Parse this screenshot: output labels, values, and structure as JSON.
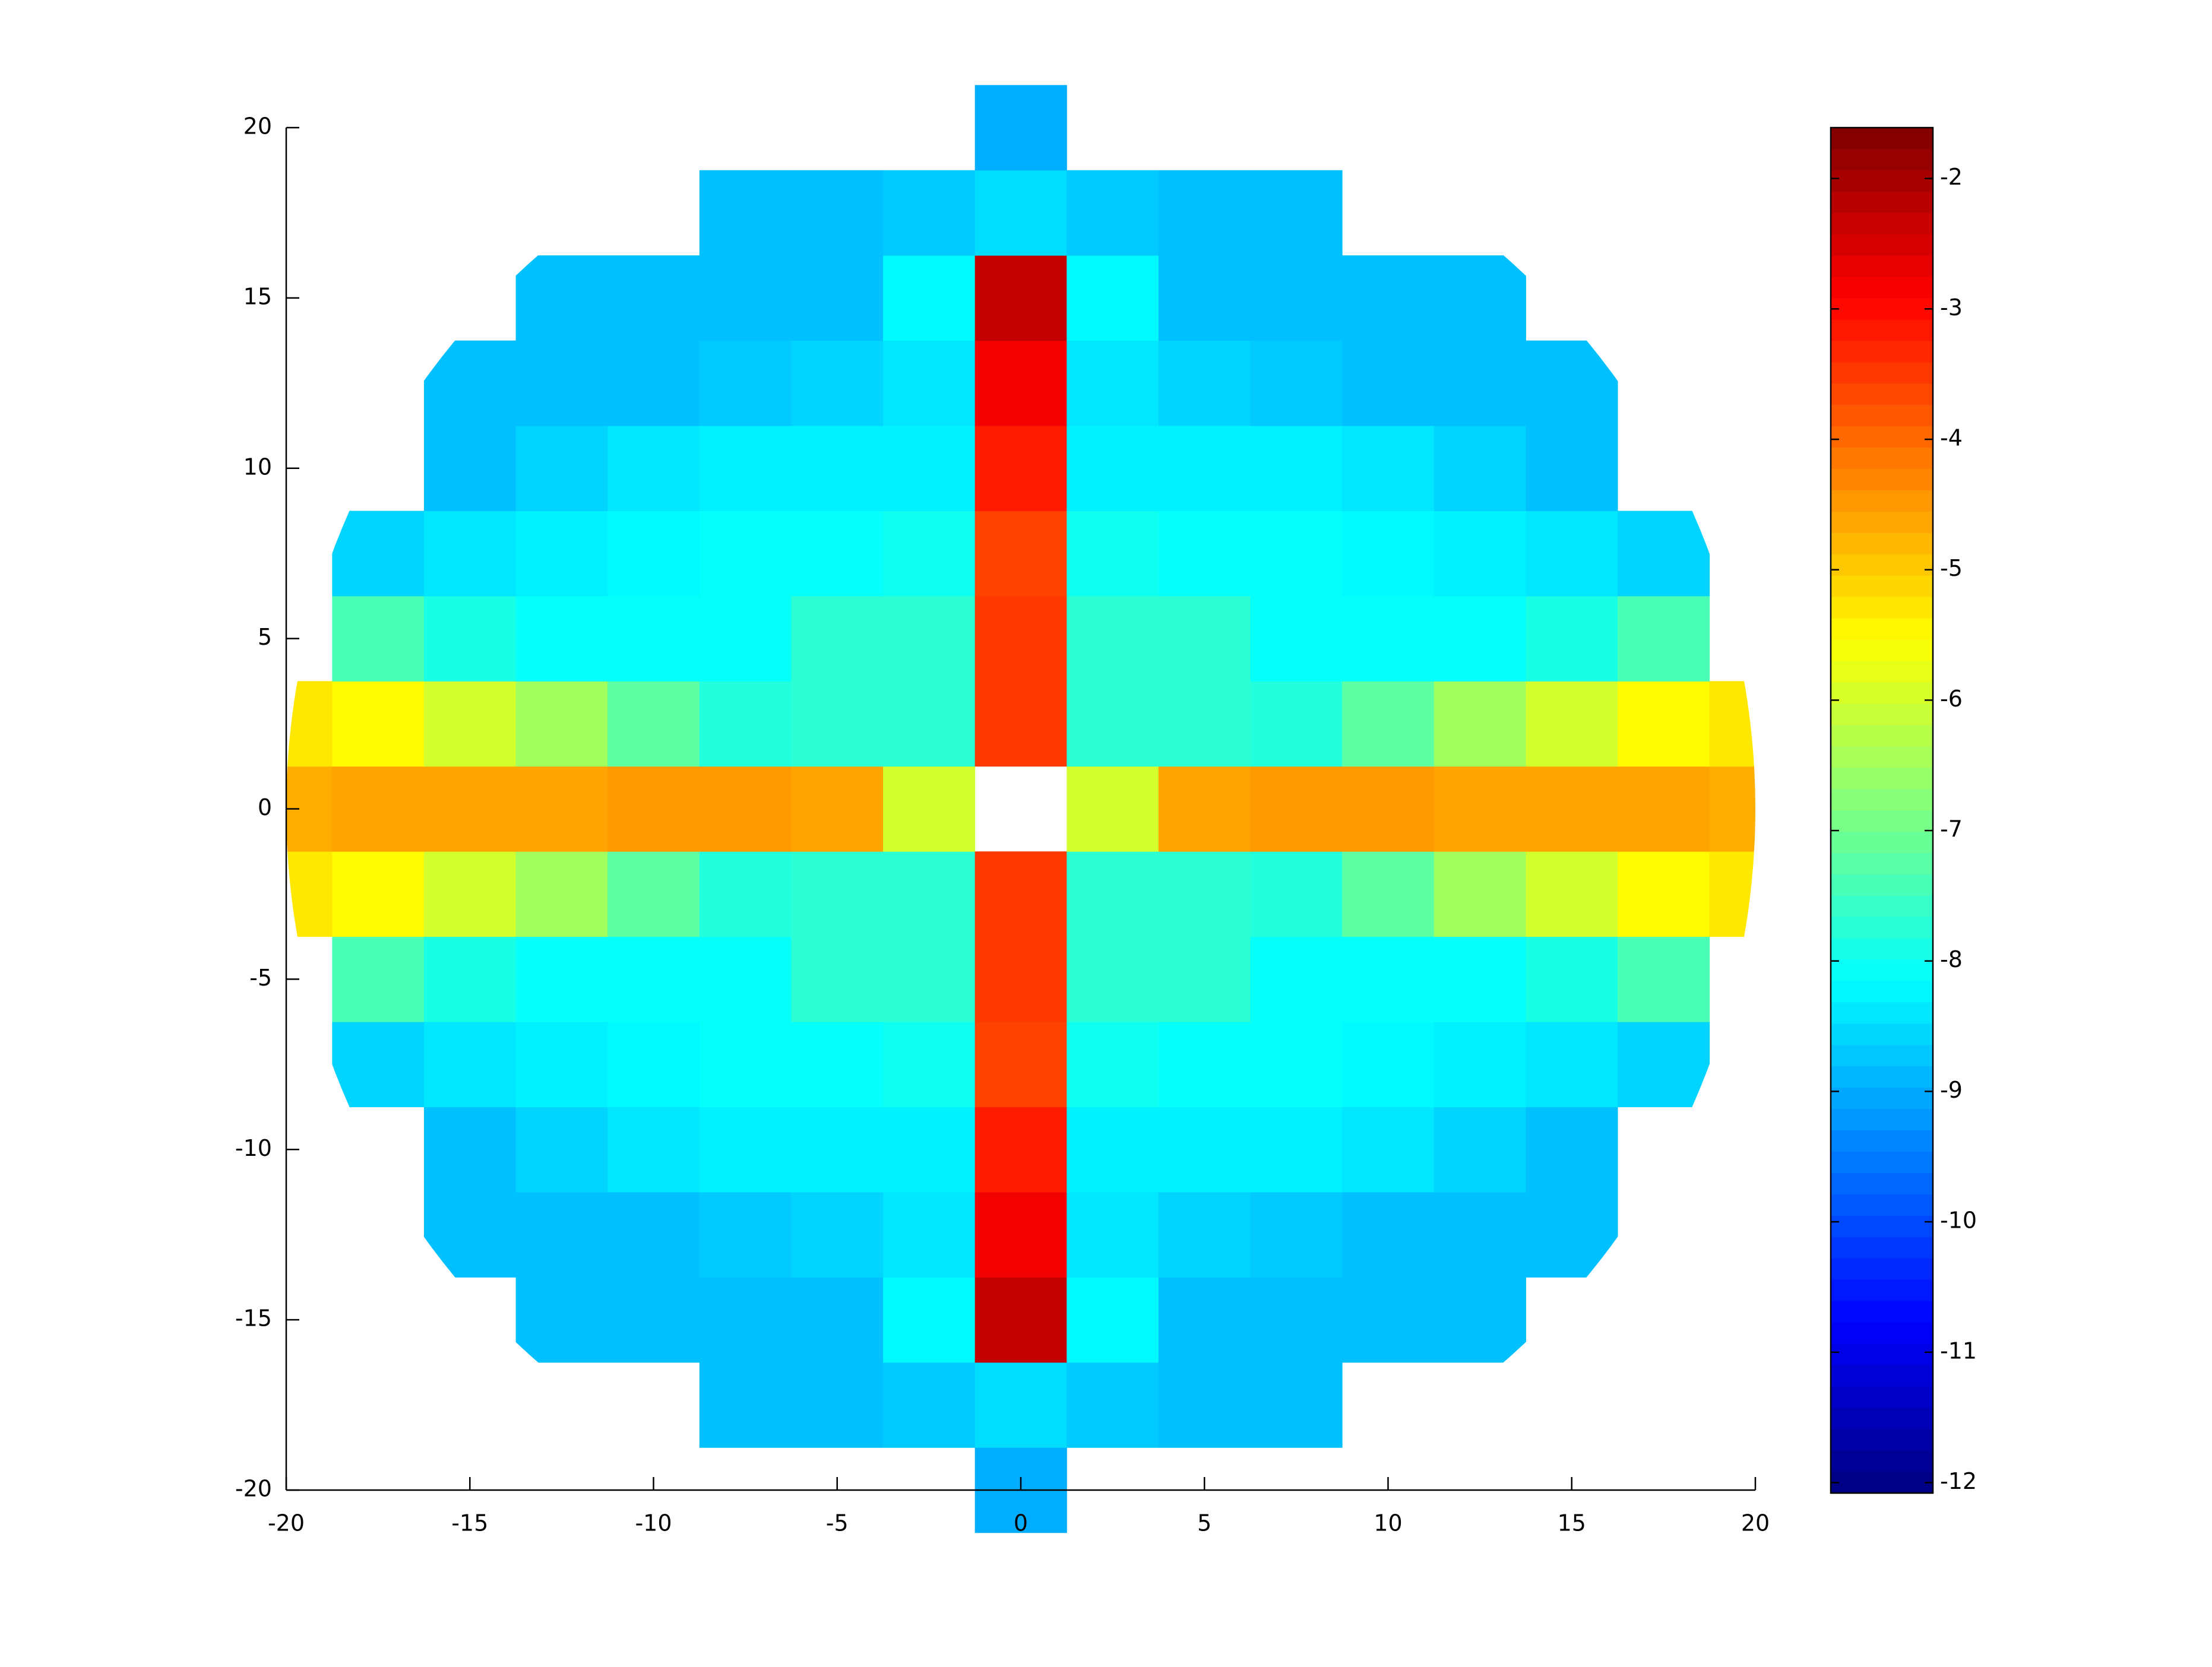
{
  "chart_data": {
    "type": "heatmap",
    "x": [
      -20,
      -17.5,
      -15,
      -12.5,
      -10,
      -7.5,
      -5,
      -2.5,
      0,
      2.5,
      5,
      7.5,
      10,
      12.5,
      15,
      17.5,
      20
    ],
    "y": [
      -20,
      -17.5,
      -15,
      -12.5,
      -10,
      -7.5,
      -5,
      -2.5,
      0,
      2.5,
      5,
      7.5,
      10,
      12.5,
      15,
      17.5,
      20
    ],
    "z": [
      [
        null,
        null,
        null,
        null,
        null,
        null,
        null,
        null,
        -9.0,
        null,
        null,
        null,
        null,
        null,
        null,
        null,
        null
      ],
      [
        null,
        null,
        null,
        null,
        null,
        -8.8,
        -8.8,
        -8.7,
        -8.5,
        -8.7,
        -8.8,
        -8.8,
        null,
        null,
        null,
        null,
        null
      ],
      [
        null,
        null,
        null,
        -8.8,
        -8.8,
        -8.8,
        -8.8,
        -8.2,
        -2.3,
        -8.2,
        -8.8,
        -8.8,
        -8.8,
        -8.8,
        null,
        null,
        null
      ],
      [
        null,
        null,
        -8.8,
        -8.8,
        -8.8,
        -8.7,
        -8.6,
        -8.4,
        -2.8,
        -8.4,
        -8.6,
        -8.7,
        -8.8,
        -8.8,
        -8.8,
        null,
        null
      ],
      [
        null,
        null,
        -8.8,
        -8.6,
        -8.4,
        -8.3,
        -8.3,
        -8.3,
        -3.2,
        -8.3,
        -8.3,
        -8.3,
        -8.4,
        -8.6,
        -8.8,
        null,
        null
      ],
      [
        null,
        -8.6,
        -8.4,
        -8.3,
        -8.2,
        -8.1,
        -8.1,
        -8.0,
        -3.6,
        -8.0,
        -8.1,
        -8.1,
        -8.2,
        -8.3,
        -8.4,
        -8.6,
        null
      ],
      [
        null,
        -7.4,
        -7.9,
        -8.1,
        -8.1,
        -8.1,
        -7.7,
        -7.7,
        -3.5,
        -7.7,
        -7.7,
        -8.1,
        -8.1,
        -8.1,
        -7.9,
        -7.4,
        null
      ],
      [
        -5.3,
        -5.5,
        -6.0,
        -6.5,
        -7.2,
        -7.8,
        -7.7,
        -7.7,
        -3.5,
        -7.7,
        -7.7,
        -7.8,
        -7.2,
        -6.5,
        -6.0,
        -5.5,
        -5.3
      ],
      [
        -4.7,
        -4.6,
        -4.6,
        -4.6,
        -4.5,
        -4.5,
        -4.6,
        -6.0,
        null,
        -6.0,
        -4.6,
        -4.5,
        -4.5,
        -4.6,
        -4.6,
        -4.6,
        -4.7
      ],
      [
        -5.3,
        -5.5,
        -6.0,
        -6.5,
        -7.2,
        -7.8,
        -7.7,
        -7.7,
        -3.5,
        -7.7,
        -7.7,
        -7.8,
        -7.2,
        -6.5,
        -6.0,
        -5.5,
        -5.3
      ],
      [
        null,
        -7.4,
        -7.9,
        -8.1,
        -8.1,
        -8.1,
        -7.7,
        -7.7,
        -3.5,
        -7.7,
        -7.7,
        -8.1,
        -8.1,
        -8.1,
        -7.9,
        -7.4,
        null
      ],
      [
        null,
        -8.6,
        -8.4,
        -8.3,
        -8.2,
        -8.1,
        -8.1,
        -8.0,
        -3.6,
        -8.0,
        -8.1,
        -8.1,
        -8.2,
        -8.3,
        -8.4,
        -8.6,
        null
      ],
      [
        null,
        null,
        -8.8,
        -8.6,
        -8.4,
        -8.3,
        -8.3,
        -8.3,
        -3.2,
        -8.3,
        -8.3,
        -8.3,
        -8.4,
        -8.6,
        -8.8,
        null,
        null
      ],
      [
        null,
        null,
        -8.8,
        -8.8,
        -8.8,
        -8.7,
        -8.6,
        -8.4,
        -2.8,
        -8.4,
        -8.6,
        -8.7,
        -8.8,
        -8.8,
        -8.8,
        null,
        null
      ],
      [
        null,
        null,
        null,
        -8.8,
        -8.8,
        -8.8,
        -8.8,
        -8.2,
        -2.3,
        -8.2,
        -8.8,
        -8.8,
        -8.8,
        -8.8,
        null,
        null,
        null
      ],
      [
        null,
        null,
        null,
        null,
        null,
        -8.8,
        -8.8,
        -8.7,
        -8.5,
        -8.7,
        -8.8,
        -8.8,
        null,
        null,
        null,
        null,
        null
      ],
      [
        null,
        null,
        null,
        null,
        null,
        null,
        null,
        null,
        -9.0,
        null,
        null,
        null,
        null,
        null,
        null,
        null,
        null
      ]
    ],
    "colormap": "jet",
    "clim": [
      -12.08,
      -1.61
    ],
    "cticks": [
      -12,
      -11,
      -10,
      -9,
      -8,
      -7,
      -6,
      -5,
      -4,
      -3,
      -2
    ],
    "xlim": [
      -20,
      20
    ],
    "ylim": [
      -20,
      20
    ],
    "xticks": [
      -20,
      -15,
      -10,
      -5,
      0,
      5,
      10,
      15,
      20
    ],
    "yticks": [
      -20,
      -15,
      -10,
      -5,
      0,
      5,
      10,
      15,
      20
    ]
  }
}
